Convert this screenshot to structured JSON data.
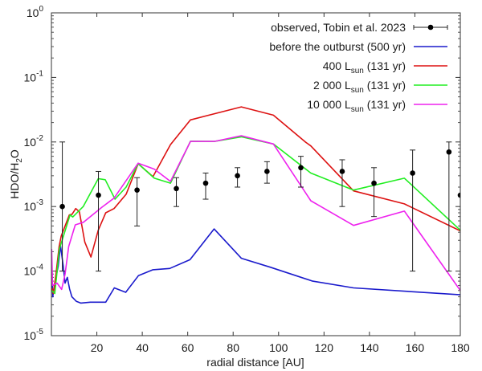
{
  "chart_data": {
    "type": "line",
    "title": "",
    "xlabel": "radial distance [AU]",
    "ylabel": {
      "main": "HDO/H",
      "sub": "2",
      "tail": "O"
    },
    "xlim": [
      0,
      180
    ],
    "ylim": [
      1e-05,
      1
    ],
    "yscale": "log",
    "grid": false,
    "legend_position": "top-right",
    "x_ticks": [
      20,
      40,
      60,
      80,
      100,
      120,
      140,
      160,
      180
    ],
    "x_tick_labels": [
      "20",
      "40",
      "60",
      "80",
      "100",
      "120",
      "140",
      "160",
      "180"
    ],
    "y_ticks": [
      {
        "value": 1,
        "base": "10",
        "exp": "0"
      },
      {
        "value": 0.1,
        "base": "10",
        "exp": "-1"
      },
      {
        "value": 0.01,
        "base": "10",
        "exp": "-2"
      },
      {
        "value": 0.001,
        "base": "10",
        "exp": "-3"
      },
      {
        "value": 0.0001,
        "base": "10",
        "exp": "-4"
      },
      {
        "value": 1e-05,
        "base": "10",
        "exp": "-5"
      }
    ],
    "observed": {
      "name": "observed, Tobin et al. 2023",
      "color": "#000000",
      "points": [
        {
          "x": 4.8,
          "y": 0.001,
          "lo": 0.0001,
          "hi": 0.01
        },
        {
          "x": 20.7,
          "y": 0.0015,
          "lo": 0.0001,
          "hi": 0.0035
        },
        {
          "x": 37.7,
          "y": 0.0018,
          "lo": 0.0005,
          "hi": 0.0028
        },
        {
          "x": 55.0,
          "y": 0.0019,
          "lo": 0.001,
          "hi": 0.0028
        },
        {
          "x": 67.9,
          "y": 0.0023,
          "lo": 0.0013,
          "hi": 0.0033
        },
        {
          "x": 81.9,
          "y": 0.003,
          "lo": 0.002,
          "hi": 0.004
        },
        {
          "x": 94.9,
          "y": 0.0035,
          "lo": 0.0023,
          "hi": 0.00495
        },
        {
          "x": 109.8,
          "y": 0.004,
          "lo": 0.002,
          "hi": 0.006
        },
        {
          "x": 128.0,
          "y": 0.0035,
          "lo": 0.001,
          "hi": 0.0053
        },
        {
          "x": 142.0,
          "y": 0.0023,
          "lo": 0.0007,
          "hi": 0.004
        },
        {
          "x": 159.0,
          "y": 0.0033,
          "lo": 0.0001,
          "hi": 0.0075
        },
        {
          "x": 175.0,
          "y": 0.007,
          "lo": 0.0001,
          "hi": 0.01
        },
        {
          "x": 180.0,
          "y": 0.0015,
          "lo": null,
          "hi": null
        }
      ]
    },
    "series": [
      {
        "name": "before the outburst (500 yr)",
        "label_main": "before the outburst (500 yr)",
        "label_sub": "",
        "label_tail": "",
        "color": "#1a1acc",
        "x": [
          0.2,
          0.6,
          1.5,
          3.0,
          4.0,
          5.2,
          6.0,
          7.0,
          8.0,
          9.0,
          11.0,
          12.9,
          17.1,
          23.9,
          27.7,
          32.7,
          38.3,
          44.7,
          52.1,
          61.0,
          71.6,
          83.6,
          96.3,
          115.0,
          133.0,
          180.0
        ],
        "y": [
          0.0001,
          4e-05,
          6.5e-05,
          0.00012,
          0.00025,
          0.00012,
          6.5e-05,
          8e-05,
          5.3e-05,
          4e-05,
          3.4e-05,
          3.2e-05,
          3.3e-05,
          3.3e-05,
          5.5e-05,
          4.7e-05,
          8.5e-05,
          0.000105,
          0.00011,
          0.00015,
          0.00045,
          0.000158,
          0.000115,
          7e-05,
          5.5e-05,
          4.3e-05
        ]
      },
      {
        "name": "400 Lsun (131 yr)",
        "label_main": "400 L",
        "label_sub": "sun",
        "label_tail": " (131 yr)",
        "color": "#dd1111",
        "x": [
          0.2,
          0.8,
          2.0,
          3.4,
          4.3,
          7.9,
          9.1,
          10.7,
          12.3,
          14.7,
          17.4,
          20.6,
          23.9,
          27.6,
          32.9,
          38.2,
          44.7,
          52.4,
          61.2,
          83.6,
          97.7,
          111.8,
          114.2,
          133.0,
          155.4,
          180.0
        ],
        "y": [
          5.5e-05,
          4.5e-05,
          9e-05,
          0.00024,
          0.00035,
          0.00074,
          0.00076,
          0.00093,
          0.00083,
          0.00028,
          0.000165,
          0.00043,
          0.0008,
          0.00093,
          0.00155,
          0.0046,
          0.0029,
          0.0091,
          0.022,
          0.035,
          0.026,
          0.01,
          0.0087,
          0.00175,
          0.0011,
          0.00042
        ]
      },
      {
        "name": "2 000 Lsun (131 yr)",
        "label_main": "2 000 L",
        "label_sub": "sun",
        "label_tail": " (131 yr)",
        "color": "#22ee22",
        "x": [
          0.2,
          1.5,
          2.5,
          3.5,
          8.2,
          9.4,
          14.0,
          20.6,
          23.7,
          28.0,
          32.9,
          38.2,
          45.3,
          52.4,
          61.2,
          71.8,
          83.6,
          97.7,
          114.2,
          133.0,
          155.4,
          180.0
        ],
        "y": [
          5e-05,
          4.5e-05,
          0.0001,
          0.00022,
          0.00074,
          0.00069,
          0.001,
          0.0027,
          0.0026,
          0.0013,
          0.002,
          0.0046,
          0.00275,
          0.0023,
          0.0103,
          0.0102,
          0.012,
          0.0093,
          0.0033,
          0.0018,
          0.00275,
          0.00043
        ]
      },
      {
        "name": "10 000 Lsun (131 yr)",
        "label_main": "10 000 L",
        "label_sub": "sun",
        "label_tail": " (131 yr)",
        "color": "#ee22ee",
        "x": [
          0.1,
          0.5,
          2.5,
          4.5,
          6.0,
          7.6,
          10.5,
          14.1,
          22.3,
          27.6,
          38.2,
          45.3,
          52.4,
          61.2,
          71.8,
          83.6,
          97.7,
          114.2,
          133.0,
          155.4,
          180.0
        ],
        "y": [
          0.00022,
          6e-05,
          6.5e-05,
          5.2e-05,
          9e-05,
          0.00024,
          0.00052,
          0.00057,
          0.00098,
          0.00135,
          0.0047,
          0.0038,
          0.00245,
          0.0102,
          0.0102,
          0.0125,
          0.0093,
          0.00123,
          0.00051,
          0.00085,
          5e-05
        ]
      }
    ]
  }
}
